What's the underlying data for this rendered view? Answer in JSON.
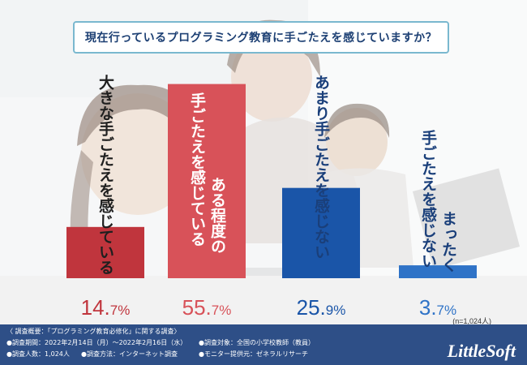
{
  "chart_data": {
    "type": "bar",
    "title": "現在行っているプログラミング教育に手ごたえを感じていますか？",
    "categories": [
      "大きな手ごたえを感じている",
      "ある程度の手ごたえを感じている",
      "あまり手ごたえを感じない",
      "まったく手ごたえを感じない"
    ],
    "values": [
      14.7,
      55.7,
      25.9,
      3.7
    ],
    "value_labels": [
      {
        "int": "14.",
        "dec": "7%"
      },
      {
        "int": "55.",
        "dec": "7%"
      },
      {
        "int": "25.",
        "dec": "9%"
      },
      {
        "int": "3.",
        "dec": "7%"
      }
    ],
    "unit": "%",
    "sample_size": "(n=1,024人)",
    "colors": [
      "#c0353d",
      "#d85259",
      "#1a55a8",
      "#2f73c7"
    ],
    "ylim": [
      0,
      60
    ]
  },
  "footer": {
    "line1": "〈 調査概要：「プログラミング教育必修化」に関する調査〉",
    "period": "●調査期間：2022年2月14日（月）〜2022年2月16日（水）",
    "target": "●調査対象：全国の小学校教師（教員）",
    "count": "●調査人数：1,024人",
    "method": "●調査方法：インターネット調査",
    "provider": "●モニター提供元：ゼネラルリサーチ",
    "logo": "LittleSoft"
  }
}
